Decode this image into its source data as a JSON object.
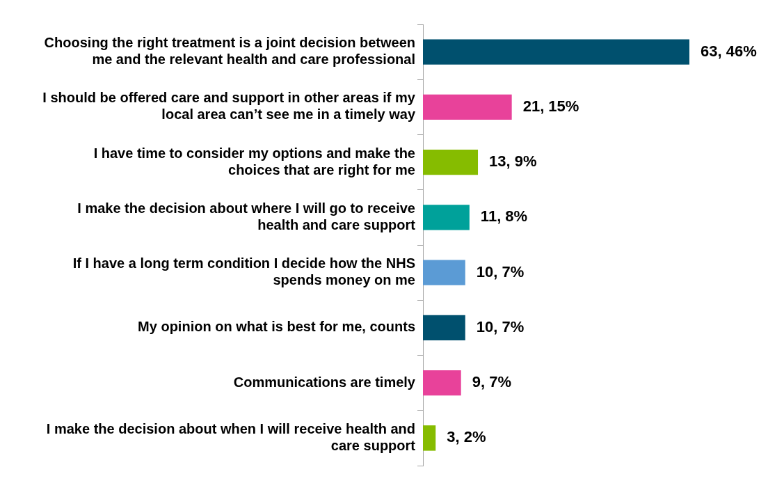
{
  "chart_data": {
    "type": "bar",
    "orientation": "horizontal",
    "categories": [
      "Choosing the right treatment is a joint decision between me and the relevant health and care professional",
      "I should be offered care and support in other areas if my local area can’t see me in a timely way",
      "I have time to consider my options and make the choices that are right for me",
      "I make the decision about where I will go to receive health and care support",
      "If I have a long term condition I decide how the NHS spends money on me",
      "My opinion on what is best for me, counts",
      "Communications are timely",
      "I make the decision about when I will receive health and care support"
    ],
    "values": [
      63,
      21,
      13,
      11,
      10,
      10,
      9,
      3
    ],
    "colors": [
      "#00506e",
      "#e8429a",
      "#86bc00",
      "#00a19a",
      "#5b9bd5",
      "#00506e",
      "#e8429a",
      "#86bc00"
    ],
    "value_labels": [
      "63, 46%",
      "21, 15%",
      "13, 9%",
      "11, 8%",
      "10, 7%",
      "10, 7%",
      "9, 7%",
      "3, 2%"
    ],
    "legend": false
  }
}
